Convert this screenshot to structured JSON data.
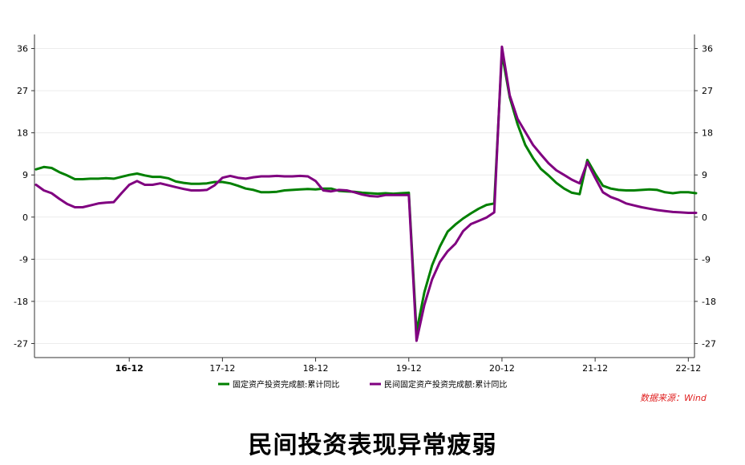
{
  "caption": "民间投资表现异常疲弱",
  "source_note": "数据来源：Wind",
  "chart_data": {
    "type": "line",
    "title": "",
    "xlabel": "",
    "ylabel": "",
    "ylim": [
      -30,
      39
    ],
    "y_ticks": [
      36,
      27,
      18,
      9,
      0,
      -9,
      -18,
      -27
    ],
    "x_tick_labels": [
      "16-12",
      "17-12",
      "18-12",
      "19-12",
      "20-12",
      "21-12",
      "22-12"
    ],
    "x_tick_index": [
      12,
      24,
      36,
      48,
      60,
      72,
      84
    ],
    "x_tick_bold": [
      true,
      false,
      false,
      false,
      false,
      false,
      false
    ],
    "grid": true,
    "dual_axis": true,
    "legend_position": "bottom",
    "series": [
      {
        "name": "固定资产投资完成额:累计同比",
        "color": "#008000",
        "values": [
          10.2,
          10.7,
          10.5,
          9.6,
          8.9,
          8.1,
          8.1,
          8.2,
          8.2,
          8.3,
          8.2,
          8.6,
          9.0,
          9.3,
          8.9,
          8.6,
          8.6,
          8.3,
          7.6,
          7.3,
          7.1,
          7.1,
          7.2,
          7.5,
          7.5,
          7.2,
          6.7,
          6.1,
          5.8,
          5.3,
          5.3,
          5.4,
          5.7,
          5.8,
          5.9,
          6.0,
          5.9,
          6.1,
          6.1,
          5.6,
          5.5,
          5.4,
          5.2,
          5.1,
          5.0,
          5.1,
          5.0,
          5.1,
          5.2,
          -24.5,
          -16.1,
          -10.3,
          -6.3,
          -3.1,
          -1.6,
          -0.3,
          0.8,
          1.8,
          2.6,
          2.9,
          35.0,
          25.6,
          19.9,
          15.4,
          12.6,
          10.3,
          8.9,
          7.3,
          6.1,
          5.2,
          4.9,
          12.2,
          9.3,
          6.7,
          6.1,
          5.8,
          5.7,
          5.7,
          5.8,
          5.9,
          5.8,
          5.3,
          5.1,
          5.3,
          5.3,
          5.1
        ]
      },
      {
        "name": "民间固定资产投资完成额:累计同比",
        "color": "#800080",
        "values": [
          6.9,
          5.7,
          5.1,
          3.9,
          2.8,
          2.1,
          2.1,
          2.5,
          2.9,
          3.1,
          3.2,
          5.1,
          6.9,
          7.7,
          6.9,
          6.9,
          7.2,
          6.8,
          6.4,
          6.0,
          5.7,
          5.7,
          5.8,
          6.8,
          8.4,
          8.8,
          8.4,
          8.2,
          8.5,
          8.7,
          8.7,
          8.8,
          8.7,
          8.7,
          8.8,
          8.7,
          7.7,
          5.7,
          5.5,
          5.8,
          5.7,
          5.3,
          4.8,
          4.5,
          4.4,
          4.7,
          4.7,
          4.7,
          4.7,
          -26.4,
          -18.8,
          -13.3,
          -9.6,
          -7.3,
          -5.7,
          -3.0,
          -1.5,
          -0.8,
          -0.1,
          1.0,
          36.4,
          26.0,
          21.0,
          18.2,
          15.4,
          13.4,
          11.5,
          10.0,
          9.0,
          8.0,
          7.2,
          11.7,
          8.4,
          5.3,
          4.3,
          3.7,
          2.9,
          2.5,
          2.1,
          1.8,
          1.5,
          1.3,
          1.1,
          1.0,
          0.9,
          0.9
        ]
      }
    ]
  }
}
